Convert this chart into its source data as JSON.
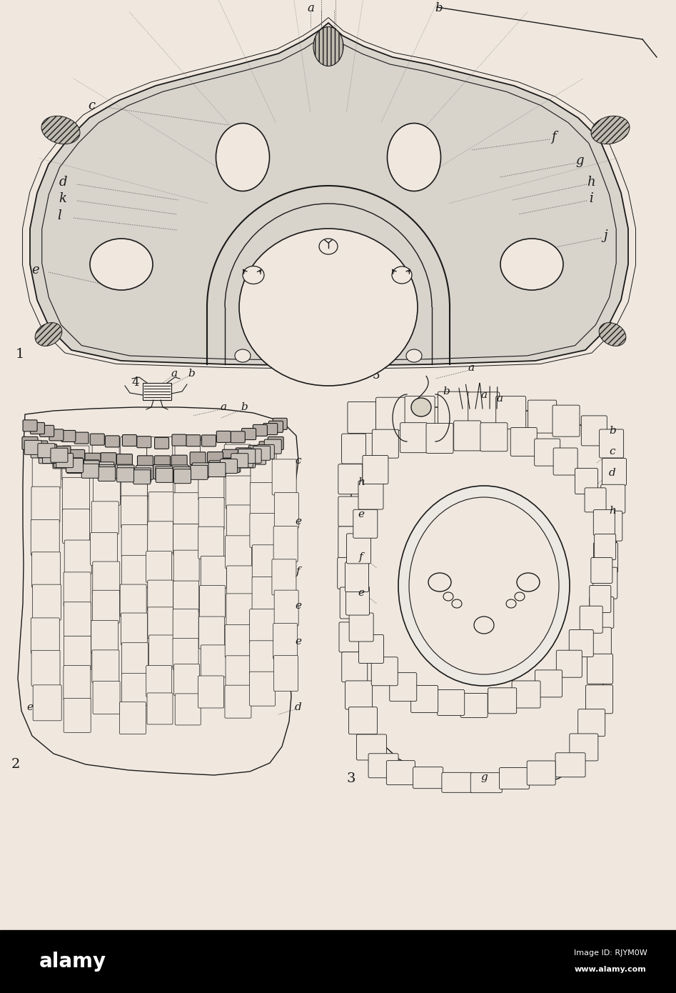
{
  "bg_color": "#f0e8df",
  "lc": "#1a1a1a",
  "fig_width": 9.47,
  "fig_height": 13.9,
  "dpi": 100,
  "alamy_text": "alamy",
  "alamy_id": "Image ID: RJYM0W",
  "alamy_url": "www.alamy.com"
}
